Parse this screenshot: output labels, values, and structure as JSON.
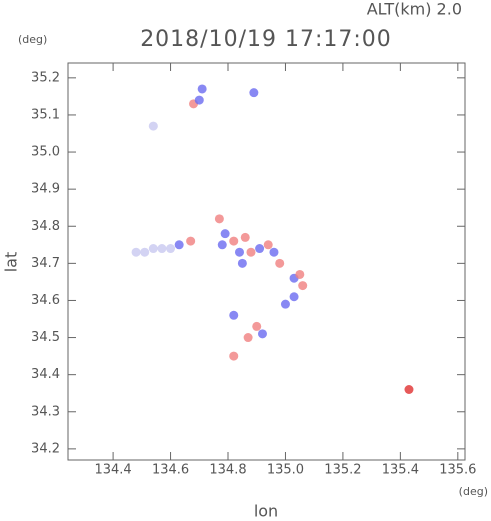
{
  "chart_data": {
    "type": "scatter",
    "title": "2018/10/19 17:17:00",
    "subtitle": "ALT(km) 2.0",
    "y_unit": "(deg)",
    "x_unit": "(deg)",
    "x_label": "lon",
    "y_label": "lat",
    "xlim": [
      134.243,
      135.625
    ],
    "ylim": [
      34.17,
      35.24
    ],
    "xticks": [
      134.4,
      134.6,
      134.8,
      {
        "value": 135,
        "label": "135.0"
      },
      135.2,
      135.4,
      135.6
    ],
    "yticks": [
      34.2,
      34.3,
      34.4,
      34.5,
      34.6,
      34.7,
      34.8,
      34.9,
      {
        "value": 35,
        "label": "35.0"
      },
      35.1,
      35.2
    ],
    "x": [
      134.68,
      134.7,
      134.71,
      134.89,
      134.54,
      134.48,
      134.51,
      134.54,
      134.57,
      134.6,
      134.63,
      134.67,
      134.77,
      134.79,
      134.78,
      134.82,
      134.84,
      134.86,
      134.88,
      134.91,
      134.94,
      134.96,
      134.98,
      135.03,
      135.05,
      135.06,
      135.03,
      135.0,
      134.85,
      134.9,
      134.87,
      134.92,
      134.82,
      134.82,
      135.43
    ],
    "y": [
      35.13,
      35.14,
      35.17,
      35.16,
      35.07,
      34.73,
      34.73,
      34.74,
      34.74,
      34.74,
      34.75,
      34.76,
      34.82,
      34.78,
      34.75,
      34.76,
      34.73,
      34.77,
      34.73,
      34.74,
      34.75,
      34.73,
      34.7,
      34.66,
      34.67,
      34.64,
      34.61,
      34.59,
      34.7,
      34.53,
      34.5,
      34.51,
      34.56,
      34.45,
      34.36
    ],
    "colors": [
      "#f08080",
      "#6a6af0",
      "#6a6af0",
      "#6a6af0",
      "#c8c8f0",
      "#c8c8f0",
      "#c8c8f0",
      "#c8c8f0",
      "#c8c8f0",
      "#c8c8f0",
      "#6a6af0",
      "#f08080",
      "#f08080",
      "#6a6af0",
      "#6a6af0",
      "#f08080",
      "#6a6af0",
      "#f08080",
      "#f08080",
      "#6a6af0",
      "#f08080",
      "#6a6af0",
      "#f08080",
      "#6a6af0",
      "#f08080",
      "#f08080",
      "#6a6af0",
      "#6a6af0",
      "#6a6af0",
      "#f08080",
      "#f08080",
      "#6a6af0",
      "#6a6af0",
      "#f08080",
      "#e03030"
    ]
  }
}
